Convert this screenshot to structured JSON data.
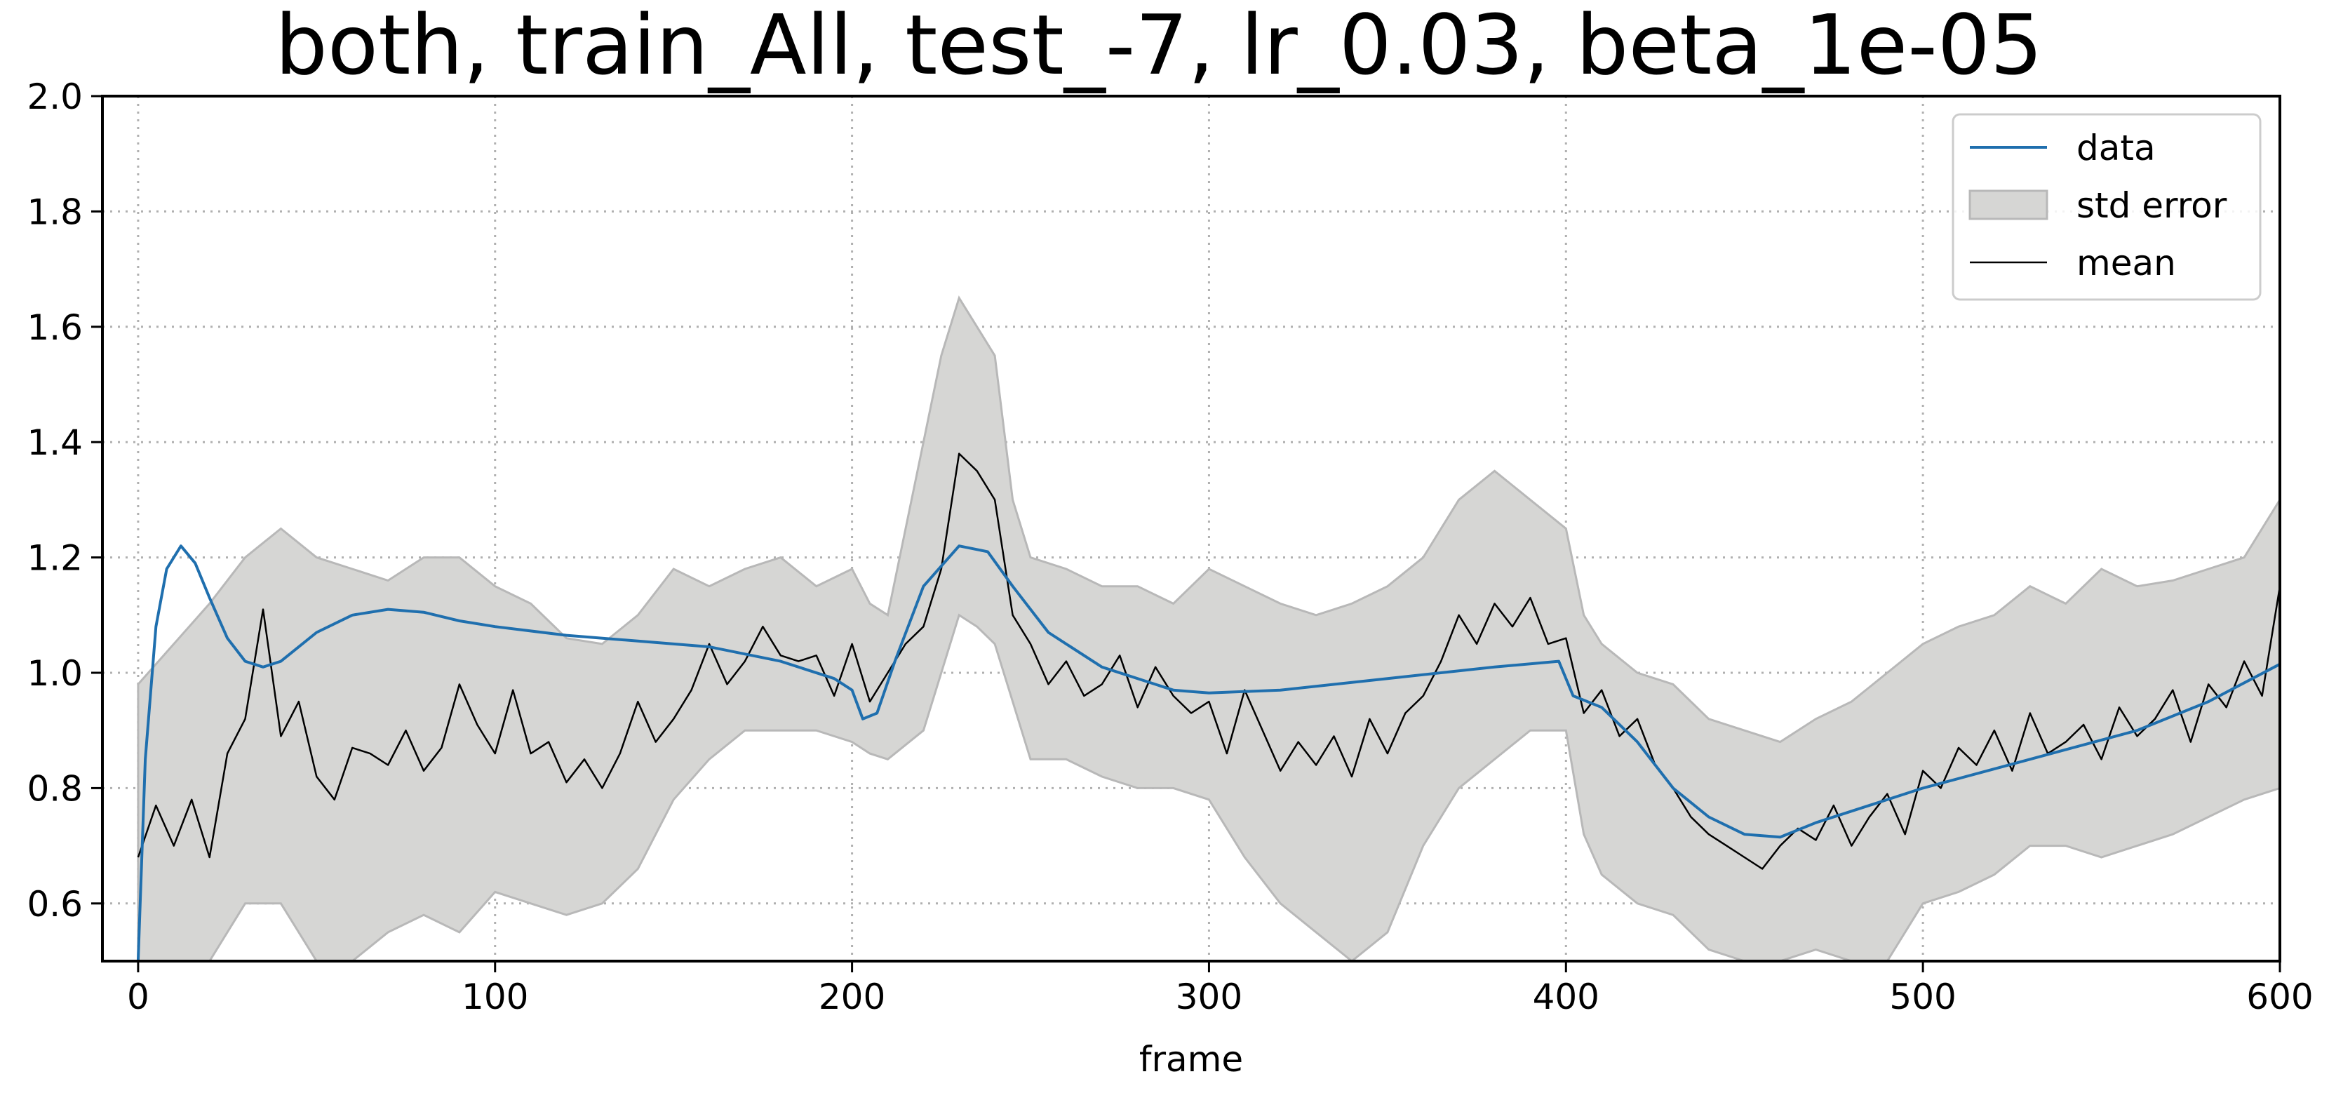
{
  "chart_data": {
    "type": "line",
    "title": "both, train_All, test_-7, lr_0.03, beta_1e-05",
    "xlabel": "frame",
    "ylabel": "",
    "xlim": [
      -10,
      600
    ],
    "ylim": [
      0.5,
      2.0
    ],
    "xticks": [
      0,
      100,
      200,
      300,
      400,
      500,
      600
    ],
    "yticks": [
      0.6,
      0.8,
      1.0,
      1.2,
      1.4,
      1.6,
      1.8,
      2.0
    ],
    "grid": true,
    "legend_position": "top-right",
    "series": [
      {
        "name": "data",
        "color": "#1f6fae",
        "points": [
          [
            0,
            0.5
          ],
          [
            2,
            0.85
          ],
          [
            5,
            1.08
          ],
          [
            8,
            1.18
          ],
          [
            12,
            1.22
          ],
          [
            16,
            1.19
          ],
          [
            20,
            1.13
          ],
          [
            25,
            1.06
          ],
          [
            30,
            1.02
          ],
          [
            35,
            1.01
          ],
          [
            40,
            1.02
          ],
          [
            50,
            1.07
          ],
          [
            60,
            1.1
          ],
          [
            70,
            1.11
          ],
          [
            80,
            1.105
          ],
          [
            90,
            1.09
          ],
          [
            100,
            1.08
          ],
          [
            120,
            1.065
          ],
          [
            140,
            1.055
          ],
          [
            160,
            1.045
          ],
          [
            180,
            1.02
          ],
          [
            195,
            0.99
          ],
          [
            200,
            0.97
          ],
          [
            203,
            0.92
          ],
          [
            207,
            0.93
          ],
          [
            212,
            1.02
          ],
          [
            220,
            1.15
          ],
          [
            230,
            1.22
          ],
          [
            238,
            1.21
          ],
          [
            245,
            1.15
          ],
          [
            255,
            1.07
          ],
          [
            270,
            1.01
          ],
          [
            290,
            0.97
          ],
          [
            300,
            0.965
          ],
          [
            320,
            0.97
          ],
          [
            350,
            0.99
          ],
          [
            380,
            1.01
          ],
          [
            398,
            1.02
          ],
          [
            402,
            0.96
          ],
          [
            410,
            0.94
          ],
          [
            420,
            0.88
          ],
          [
            430,
            0.8
          ],
          [
            440,
            0.75
          ],
          [
            450,
            0.72
          ],
          [
            460,
            0.715
          ],
          [
            470,
            0.74
          ],
          [
            500,
            0.8
          ],
          [
            530,
            0.85
          ],
          [
            560,
            0.9
          ],
          [
            580,
            0.95
          ],
          [
            600,
            1.015
          ]
        ]
      },
      {
        "name": "mean",
        "color": "#000000",
        "points": [
          [
            0,
            0.68
          ],
          [
            5,
            0.77
          ],
          [
            10,
            0.7
          ],
          [
            15,
            0.78
          ],
          [
            20,
            0.68
          ],
          [
            25,
            0.86
          ],
          [
            30,
            0.92
          ],
          [
            35,
            1.11
          ],
          [
            40,
            0.89
          ],
          [
            45,
            0.95
          ],
          [
            50,
            0.82
          ],
          [
            55,
            0.78
          ],
          [
            60,
            0.87
          ],
          [
            65,
            0.86
          ],
          [
            70,
            0.84
          ],
          [
            75,
            0.9
          ],
          [
            80,
            0.83
          ],
          [
            85,
            0.87
          ],
          [
            90,
            0.98
          ],
          [
            95,
            0.91
          ],
          [
            100,
            0.86
          ],
          [
            105,
            0.97
          ],
          [
            110,
            0.86
          ],
          [
            115,
            0.88
          ],
          [
            120,
            0.81
          ],
          [
            125,
            0.85
          ],
          [
            130,
            0.8
          ],
          [
            135,
            0.86
          ],
          [
            140,
            0.95
          ],
          [
            145,
            0.88
          ],
          [
            150,
            0.92
          ],
          [
            155,
            0.97
          ],
          [
            160,
            1.05
          ],
          [
            165,
            0.98
          ],
          [
            170,
            1.02
          ],
          [
            175,
            1.08
          ],
          [
            180,
            1.03
          ],
          [
            185,
            1.02
          ],
          [
            190,
            1.03
          ],
          [
            195,
            0.96
          ],
          [
            200,
            1.05
          ],
          [
            205,
            0.95
          ],
          [
            210,
            1.0
          ],
          [
            215,
            1.05
          ],
          [
            220,
            1.08
          ],
          [
            225,
            1.18
          ],
          [
            230,
            1.38
          ],
          [
            235,
            1.35
          ],
          [
            240,
            1.3
          ],
          [
            245,
            1.1
          ],
          [
            250,
            1.05
          ],
          [
            255,
            0.98
          ],
          [
            260,
            1.02
          ],
          [
            265,
            0.96
          ],
          [
            270,
            0.98
          ],
          [
            275,
            1.03
          ],
          [
            280,
            0.94
          ],
          [
            285,
            1.01
          ],
          [
            290,
            0.96
          ],
          [
            295,
            0.93
          ],
          [
            300,
            0.95
          ],
          [
            305,
            0.86
          ],
          [
            310,
            0.97
          ],
          [
            315,
            0.9
          ],
          [
            320,
            0.83
          ],
          [
            325,
            0.88
          ],
          [
            330,
            0.84
          ],
          [
            335,
            0.89
          ],
          [
            340,
            0.82
          ],
          [
            345,
            0.92
          ],
          [
            350,
            0.86
          ],
          [
            355,
            0.93
          ],
          [
            360,
            0.96
          ],
          [
            365,
            1.02
          ],
          [
            370,
            1.1
          ],
          [
            375,
            1.05
          ],
          [
            380,
            1.12
          ],
          [
            385,
            1.08
          ],
          [
            390,
            1.13
          ],
          [
            395,
            1.05
          ],
          [
            400,
            1.06
          ],
          [
            405,
            0.93
          ],
          [
            410,
            0.97
          ],
          [
            415,
            0.89
          ],
          [
            420,
            0.92
          ],
          [
            425,
            0.84
          ],
          [
            430,
            0.8
          ],
          [
            435,
            0.75
          ],
          [
            440,
            0.72
          ],
          [
            445,
            0.7
          ],
          [
            450,
            0.68
          ],
          [
            455,
            0.66
          ],
          [
            460,
            0.7
          ],
          [
            465,
            0.73
          ],
          [
            470,
            0.71
          ],
          [
            475,
            0.77
          ],
          [
            480,
            0.7
          ],
          [
            485,
            0.75
          ],
          [
            490,
            0.79
          ],
          [
            495,
            0.72
          ],
          [
            500,
            0.83
          ],
          [
            505,
            0.8
          ],
          [
            510,
            0.87
          ],
          [
            515,
            0.84
          ],
          [
            520,
            0.9
          ],
          [
            525,
            0.83
          ],
          [
            530,
            0.93
          ],
          [
            535,
            0.86
          ],
          [
            540,
            0.88
          ],
          [
            545,
            0.91
          ],
          [
            550,
            0.85
          ],
          [
            555,
            0.94
          ],
          [
            560,
            0.89
          ],
          [
            565,
            0.92
          ],
          [
            570,
            0.97
          ],
          [
            575,
            0.88
          ],
          [
            580,
            0.98
          ],
          [
            585,
            0.94
          ],
          [
            590,
            1.02
          ],
          [
            595,
            0.96
          ],
          [
            600,
            1.15
          ]
        ]
      },
      {
        "name": "std error",
        "type": "band",
        "color": "#d6d6d4",
        "edge_color": "#b8b8b8",
        "x": [
          0,
          10,
          20,
          30,
          40,
          50,
          60,
          70,
          80,
          90,
          100,
          110,
          120,
          130,
          140,
          150,
          160,
          170,
          180,
          190,
          200,
          205,
          210,
          220,
          225,
          230,
          235,
          240,
          245,
          250,
          260,
          270,
          280,
          290,
          300,
          310,
          320,
          330,
          340,
          350,
          360,
          370,
          380,
          390,
          400,
          405,
          410,
          420,
          430,
          440,
          450,
          460,
          470,
          480,
          490,
          500,
          510,
          520,
          530,
          540,
          550,
          560,
          570,
          580,
          590,
          600
        ],
        "lower": [
          0.5,
          0.5,
          0.5,
          0.6,
          0.6,
          0.5,
          0.5,
          0.55,
          0.58,
          0.55,
          0.62,
          0.6,
          0.58,
          0.6,
          0.66,
          0.78,
          0.85,
          0.9,
          0.9,
          0.9,
          0.88,
          0.86,
          0.85,
          0.9,
          1.0,
          1.1,
          1.08,
          1.05,
          0.95,
          0.85,
          0.85,
          0.82,
          0.8,
          0.8,
          0.78,
          0.68,
          0.6,
          0.55,
          0.5,
          0.55,
          0.7,
          0.8,
          0.85,
          0.9,
          0.9,
          0.72,
          0.65,
          0.6,
          0.58,
          0.52,
          0.5,
          0.5,
          0.52,
          0.5,
          0.5,
          0.6,
          0.62,
          0.65,
          0.7,
          0.7,
          0.68,
          0.7,
          0.72,
          0.75,
          0.78,
          0.8
        ],
        "upper": [
          0.98,
          1.05,
          1.12,
          1.2,
          1.25,
          1.2,
          1.18,
          1.16,
          1.2,
          1.2,
          1.15,
          1.12,
          1.06,
          1.05,
          1.1,
          1.18,
          1.15,
          1.18,
          1.2,
          1.15,
          1.18,
          1.12,
          1.1,
          1.4,
          1.55,
          1.65,
          1.6,
          1.55,
          1.3,
          1.2,
          1.18,
          1.15,
          1.15,
          1.12,
          1.18,
          1.15,
          1.12,
          1.1,
          1.12,
          1.15,
          1.2,
          1.3,
          1.35,
          1.3,
          1.25,
          1.1,
          1.05,
          1.0,
          0.98,
          0.92,
          0.9,
          0.88,
          0.92,
          0.95,
          1.0,
          1.05,
          1.08,
          1.1,
          1.15,
          1.12,
          1.18,
          1.15,
          1.16,
          1.18,
          1.2,
          1.3
        ]
      }
    ]
  }
}
